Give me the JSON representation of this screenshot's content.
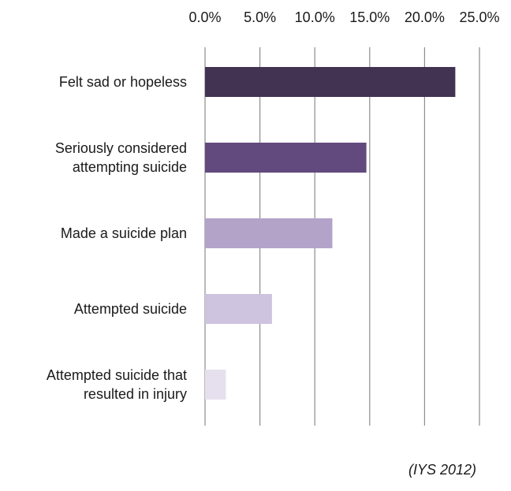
{
  "chart_data": {
    "type": "bar",
    "orientation": "horizontal",
    "categories": [
      [
        "Felt sad or hopeless"
      ],
      [
        "Seriously considered",
        "attempting suicide"
      ],
      [
        "Made a suicide plan"
      ],
      [
        "Attempted suicide"
      ],
      [
        "Attempted suicide that",
        "resulted in injury"
      ]
    ],
    "values": [
      22.8,
      14.7,
      11.6,
      6.1,
      1.9
    ],
    "colors": [
      "#433352",
      "#624a7e",
      "#b4a3c9",
      "#cfc4df",
      "#e6e0ee"
    ],
    "xlim": [
      0,
      25
    ],
    "xticks": [
      0,
      5,
      10,
      15,
      20,
      25
    ],
    "tick_labels": [
      "0.0%",
      "5.0%",
      "10.0%",
      "15.0%",
      "20.0%",
      "25.0%"
    ],
    "axis_position": "top",
    "grid": true,
    "gridline_color": "#8c8c8c",
    "title": "",
    "xlabel": "",
    "ylabel": ""
  },
  "source_note": "(IYS 2012)"
}
